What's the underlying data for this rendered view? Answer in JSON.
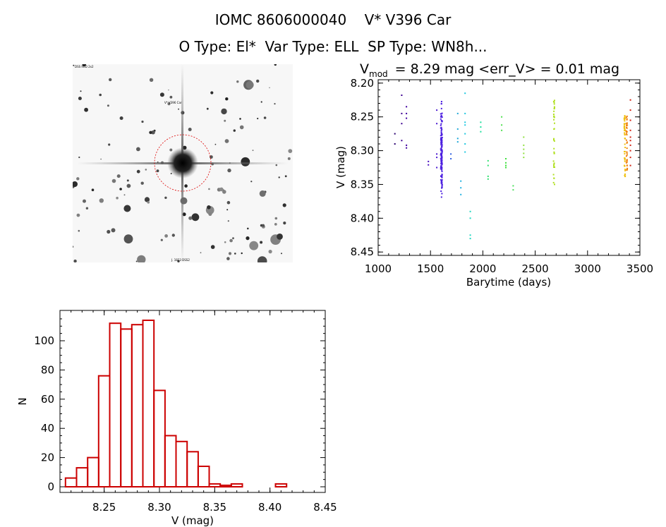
{
  "header": {
    "title_line1": "IOMC 8606000040    V* V396 Car",
    "title_line2": "O Type: El*  Var Type: ELL  SP Type: WN8h..."
  },
  "sky_image": {
    "top_left_label": "DSS RED 2x2",
    "target_label": "V* V396 Car",
    "bottom_label": "J. 1823 DSS2"
  },
  "chart_data": [
    {
      "type": "scatter",
      "title_main": "V",
      "title_sub": "mod",
      "title_rest": "= 8.29 mag <err_V> = 0.01 mag",
      "xlabel": "Barytime (days)",
      "ylabel": "V (mag)",
      "xlim": [
        1000,
        3500
      ],
      "ylim": [
        8.45,
        8.2
      ],
      "xticks": [
        1000,
        1500,
        2000,
        2500,
        3000,
        3500
      ],
      "yticks": [
        "8.20",
        "8.25",
        "8.30",
        "8.35",
        "8.40",
        "8.45"
      ],
      "grid": false,
      "groups": [
        {
          "x": 1160,
          "color": "#2a0070",
          "y": [
            8.275,
            8.29
          ]
        },
        {
          "x": 1225,
          "color": "#3c0090",
          "y": [
            8.218,
            8.245,
            8.26,
            8.285
          ]
        },
        {
          "x": 1270,
          "color": "#4000a0",
          "y": [
            8.235,
            8.245,
            8.252,
            8.292,
            8.296
          ]
        },
        {
          "x": 1480,
          "color": "#4a10c0",
          "y": [
            8.316,
            8.321
          ]
        },
        {
          "x": 1560,
          "color": "#4a18d0",
          "y": [
            8.24,
            8.26,
            8.305,
            8.31,
            8.325
          ]
        },
        {
          "x": 1605,
          "color": "#4c20e0",
          "ymin": 8.215,
          "ymax": 8.39,
          "n": 150,
          "dense": true
        },
        {
          "x": 1695,
          "color": "#3060e0",
          "y": [
            8.305,
            8.312
          ]
        },
        {
          "x": 1760,
          "color": "#20a8d8",
          "y": [
            8.245,
            8.268,
            8.282,
            8.287
          ]
        },
        {
          "x": 1790,
          "color": "#20b0e0",
          "y": [
            8.345,
            8.355,
            8.365
          ]
        },
        {
          "x": 1830,
          "color": "#20c8e0",
          "y": [
            8.215,
            8.245,
            8.258,
            8.262,
            8.275,
            8.29,
            8.302
          ]
        },
        {
          "x": 1880,
          "color": "#20d8c0",
          "y": [
            8.39,
            8.4,
            8.425,
            8.43
          ]
        },
        {
          "x": 1980,
          "color": "#20e0a0",
          "y": [
            8.258,
            8.265,
            8.272
          ]
        },
        {
          "x": 2050,
          "color": "#30e070",
          "y": [
            8.315,
            8.322,
            8.338,
            8.342
          ]
        },
        {
          "x": 2180,
          "color": "#50e050",
          "y": [
            8.25,
            8.262,
            8.27
          ]
        },
        {
          "x": 2220,
          "color": "#40e040",
          "y": [
            8.312,
            8.318,
            8.322,
            8.325
          ]
        },
        {
          "x": 2290,
          "color": "#50e060",
          "y": [
            8.352,
            8.358
          ]
        },
        {
          "x": 2390,
          "color": "#90e040",
          "y": [
            8.28,
            8.292,
            8.298,
            8.304,
            8.31
          ]
        },
        {
          "x": 2680,
          "color": "#b0e020",
          "ymin": 8.225,
          "ymax": 8.35,
          "n": 35,
          "dense": false
        },
        {
          "x": 3355,
          "color": "#f0c010",
          "ymin": 8.245,
          "ymax": 8.34,
          "n": 45,
          "dense": false
        },
        {
          "x": 3375,
          "color": "#f08010",
          "ymin": 8.248,
          "ymax": 8.33,
          "n": 40,
          "dense": false
        },
        {
          "x": 3410,
          "color": "#d02010",
          "y": [
            8.225,
            8.24,
            8.255,
            8.27,
            8.28,
            8.285,
            8.292,
            8.3,
            8.31,
            8.322
          ]
        }
      ]
    },
    {
      "type": "histogram",
      "xlabel": "V (mag)",
      "ylabel": "N",
      "xlim": [
        8.21,
        8.45
      ],
      "ylim": [
        0,
        120
      ],
      "xticks": [
        "8.25",
        "8.30",
        "8.35",
        "8.40",
        "8.45"
      ],
      "yticks": [
        "0",
        "20",
        "40",
        "60",
        "80",
        "100"
      ],
      "bin_width": 0.01,
      "bin_starts": [
        8.215,
        8.225,
        8.235,
        8.245,
        8.255,
        8.265,
        8.275,
        8.285,
        8.295,
        8.305,
        8.315,
        8.325,
        8.335,
        8.345,
        8.355,
        8.365,
        8.375,
        8.385,
        8.395,
        8.405,
        8.415,
        8.425
      ],
      "counts": [
        6,
        13,
        20,
        76,
        112,
        108,
        111,
        114,
        66,
        35,
        31,
        24,
        14,
        2,
        1,
        2,
        0,
        0,
        0,
        2,
        0,
        0
      ],
      "color": "#cc0000"
    }
  ]
}
